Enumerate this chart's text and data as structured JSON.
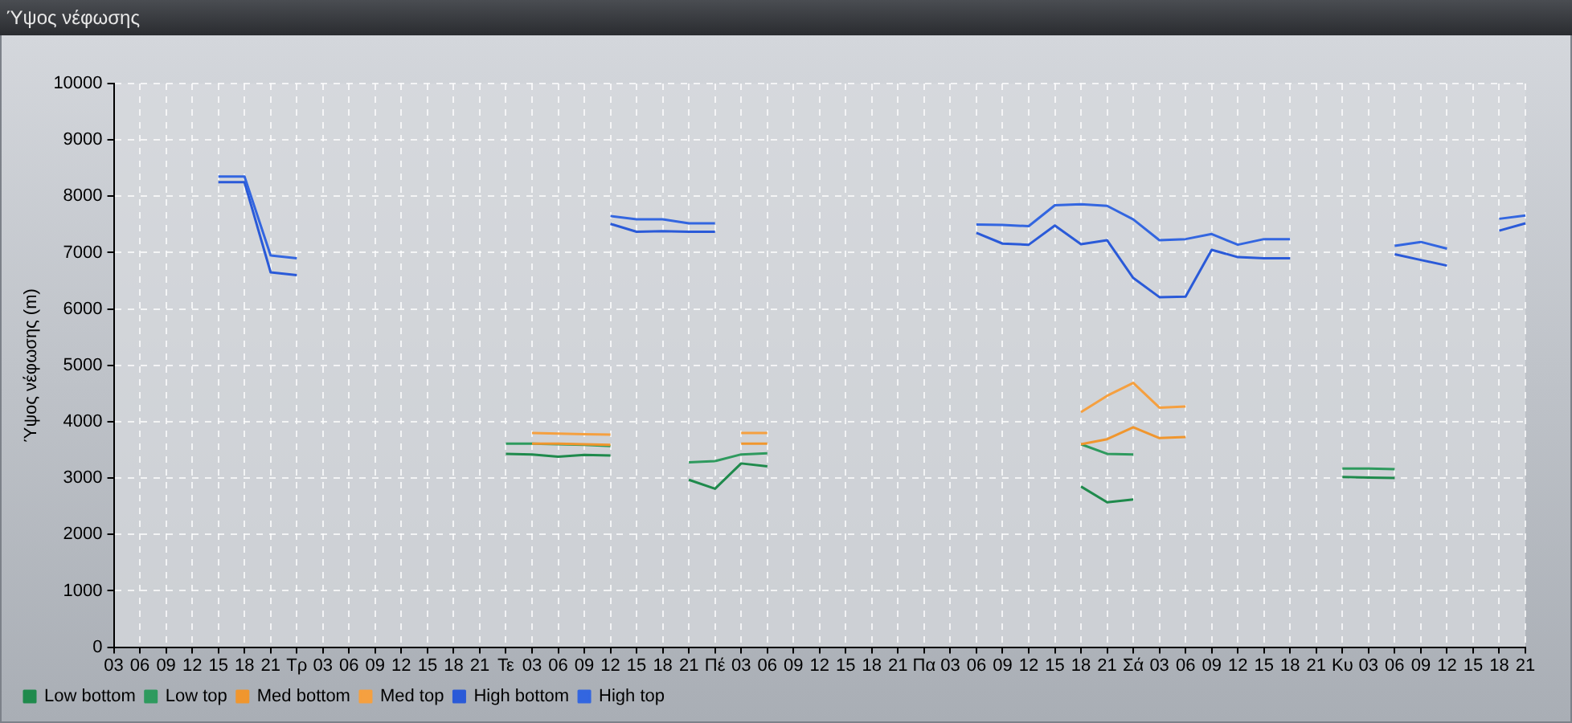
{
  "chart_data": {
    "type": "line",
    "title": "Ύψος νέφωσης",
    "ylabel": "Ύψος νέφωσης (m)",
    "categories": [
      "03",
      "06",
      "09",
      "12",
      "15",
      "18",
      "21",
      "Τρ",
      "03",
      "06",
      "09",
      "12",
      "15",
      "18",
      "21",
      "Τε",
      "03",
      "06",
      "09",
      "12",
      "15",
      "18",
      "21",
      "Πέ",
      "03",
      "06",
      "09",
      "12",
      "15",
      "18",
      "21",
      "Πα",
      "03",
      "06",
      "09",
      "12",
      "15",
      "18",
      "21",
      "Σά",
      "03",
      "06",
      "09",
      "12",
      "15",
      "18",
      "21",
      "Κυ",
      "03",
      "06",
      "09",
      "12",
      "15",
      "18",
      "21"
    ],
    "series": [
      {
        "name": "Low bottom",
        "color": "#1f8a4c",
        "values": [
          null,
          null,
          null,
          null,
          null,
          null,
          null,
          null,
          null,
          null,
          null,
          null,
          null,
          null,
          null,
          3430,
          3420,
          3380,
          3410,
          3400,
          null,
          null,
          2970,
          2810,
          3260,
          3210,
          null,
          null,
          null,
          null,
          null,
          null,
          null,
          null,
          null,
          null,
          null,
          2850,
          2570,
          2620,
          null,
          null,
          null,
          null,
          null,
          null,
          null,
          3020,
          3010,
          3000,
          null,
          null,
          null,
          null,
          null
        ]
      },
      {
        "name": "Low top",
        "color": "#2e9a5e",
        "values": [
          null,
          null,
          null,
          null,
          null,
          null,
          null,
          null,
          null,
          null,
          null,
          null,
          null,
          null,
          null,
          3610,
          3610,
          3600,
          3590,
          3570,
          null,
          null,
          3280,
          3300,
          3420,
          3440,
          null,
          null,
          null,
          null,
          null,
          null,
          null,
          null,
          null,
          null,
          null,
          3600,
          3430,
          3420,
          null,
          null,
          null,
          null,
          null,
          null,
          null,
          3170,
          3170,
          3160,
          null,
          null,
          null,
          null,
          null
        ]
      },
      {
        "name": "Med bottom",
        "color": "#f0962e",
        "values": [
          null,
          null,
          null,
          null,
          null,
          null,
          null,
          null,
          null,
          null,
          null,
          null,
          null,
          null,
          null,
          null,
          3610,
          3610,
          3600,
          3590,
          null,
          null,
          null,
          null,
          3610,
          3610,
          null,
          null,
          null,
          null,
          null,
          null,
          null,
          null,
          null,
          null,
          null,
          3600,
          3690,
          3900,
          3710,
          3730,
          null,
          null,
          null,
          null,
          null,
          null,
          null,
          null,
          null,
          null,
          null,
          null,
          null
        ]
      },
      {
        "name": "Med top",
        "color": "#f5a040",
        "values": [
          null,
          null,
          null,
          null,
          null,
          null,
          null,
          null,
          null,
          null,
          null,
          null,
          null,
          null,
          null,
          null,
          3800,
          3790,
          3780,
          3770,
          null,
          null,
          null,
          null,
          3800,
          3800,
          null,
          null,
          null,
          null,
          null,
          null,
          null,
          null,
          null,
          null,
          null,
          4170,
          4460,
          4690,
          4250,
          4270,
          null,
          null,
          null,
          null,
          null,
          null,
          null,
          null,
          null,
          null,
          null,
          null,
          null
        ]
      },
      {
        "name": "High bottom",
        "color": "#2a5ad8",
        "values": [
          null,
          null,
          null,
          null,
          8250,
          8250,
          6650,
          6600,
          null,
          null,
          null,
          null,
          null,
          null,
          null,
          null,
          null,
          null,
          null,
          7510,
          7370,
          7380,
          7370,
          7370,
          null,
          null,
          null,
          null,
          null,
          null,
          null,
          null,
          null,
          7350,
          7160,
          7140,
          7480,
          7150,
          7220,
          6550,
          6210,
          6220,
          7050,
          6920,
          6900,
          6900,
          null,
          null,
          null,
          6970,
          6870,
          6770,
          null,
          7390,
          7520
        ]
      },
      {
        "name": "High top",
        "color": "#3366e0",
        "values": [
          null,
          null,
          null,
          null,
          8350,
          8350,
          6950,
          6900,
          null,
          null,
          null,
          null,
          null,
          null,
          null,
          null,
          null,
          null,
          null,
          7650,
          7590,
          7590,
          7520,
          7520,
          null,
          null,
          null,
          null,
          null,
          null,
          null,
          null,
          null,
          7500,
          7490,
          7470,
          7840,
          7860,
          7830,
          7590,
          7220,
          7240,
          7330,
          7140,
          7240,
          7240,
          null,
          null,
          null,
          7120,
          7190,
          7070,
          null,
          7600,
          7660
        ]
      }
    ],
    "ylim": [
      0,
      10000
    ],
    "yticks": [
      0,
      1000,
      2000,
      3000,
      4000,
      5000,
      6000,
      7000,
      8000,
      9000,
      10000
    ],
    "grid": true,
    "legend": "bottom left",
    "marker": "none",
    "line_style": "solid"
  }
}
